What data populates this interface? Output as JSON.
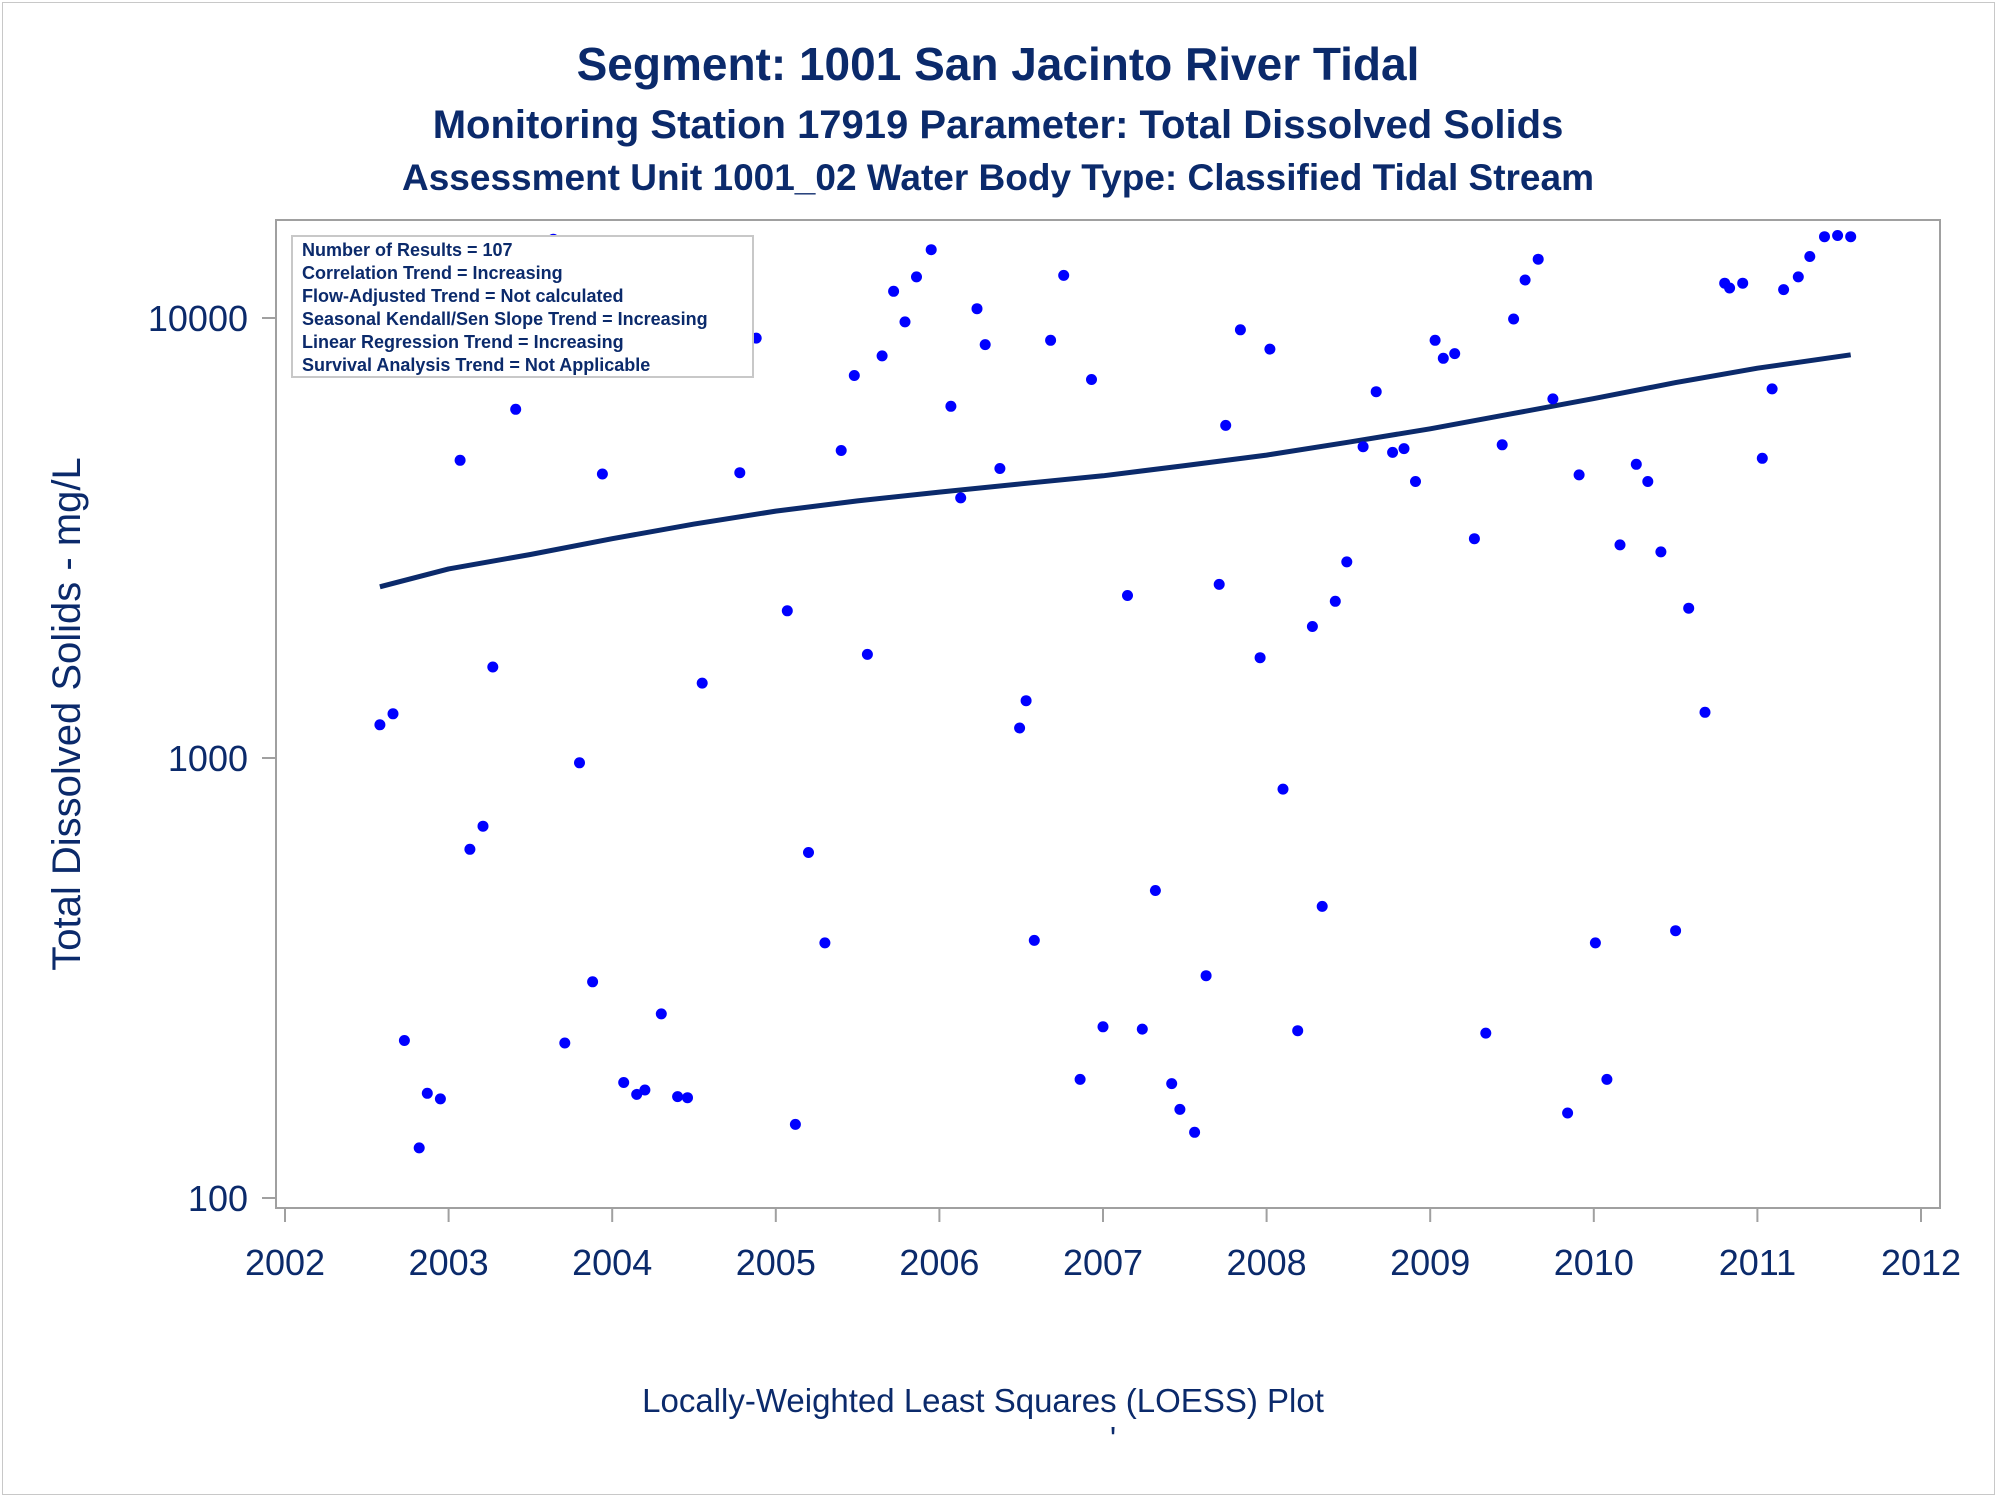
{
  "titles": {
    "line1": "Segment: 1001  San Jacinto River Tidal",
    "line2": "Monitoring Station 17919 Parameter: Total Dissolved Solids",
    "line3": "Assessment Unit 1001_02   Water Body Type: Classified Tidal Stream"
  },
  "stats_box": [
    "Number of Results = 107",
    "Correlation Trend = Increasing",
    "Flow-Adjusted Trend = Not calculated",
    "Seasonal Kendall/Sen Slope Trend = Increasing",
    "Linear Regression Trend = Increasing",
    "Survival Analysis Trend = Not Applicable"
  ],
  "footnote": "Locally-Weighted Least Squares (LOESS) Plot",
  "footnote_mark": "'",
  "colors": {
    "text": "#0b2a6b",
    "points": "#0000ff",
    "line": "#0b2a6b",
    "frame": "#a0a0a0"
  },
  "chart_data": {
    "type": "scatter",
    "title": "Segment: 1001  San Jacinto River Tidal",
    "xlabel": "",
    "ylabel": "Total Dissolved Solids - mg/L",
    "xlim": [
      2002,
      2012
    ],
    "ylim": [
      100,
      16000
    ],
    "yscale": "log",
    "x_ticks": [
      "2002",
      "2003",
      "2004",
      "2005",
      "2006",
      "2007",
      "2008",
      "2009",
      "2010",
      "2011",
      "2012"
    ],
    "y_ticks": [
      "100",
      "1000",
      "10000"
    ],
    "grid": false,
    "legend": "none",
    "series": [
      {
        "type": "scatter",
        "points": [
          [
            2002.58,
            1190
          ],
          [
            2002.66,
            1260
          ],
          [
            2002.73,
            228
          ],
          [
            2002.82,
            130
          ],
          [
            2002.87,
            173
          ],
          [
            2002.95,
            168
          ],
          [
            2003.07,
            4750
          ],
          [
            2003.13,
            620
          ],
          [
            2003.21,
            700
          ],
          [
            2003.27,
            1610
          ],
          [
            2003.41,
            6200
          ],
          [
            2003.45,
            7600
          ],
          [
            2003.64,
            15100
          ],
          [
            2003.71,
            225
          ],
          [
            2003.8,
            975
          ],
          [
            2003.88,
            310
          ],
          [
            2003.94,
            4420
          ],
          [
            2004.07,
            183
          ],
          [
            2004.15,
            172
          ],
          [
            2004.2,
            176
          ],
          [
            2004.3,
            262
          ],
          [
            2004.4,
            170
          ],
          [
            2004.46,
            169
          ],
          [
            2004.55,
            1480
          ],
          [
            2004.62,
            8100
          ],
          [
            2004.78,
            4450
          ],
          [
            2004.88,
            9000
          ],
          [
            2005.07,
            2160
          ],
          [
            2005.12,
            147
          ],
          [
            2005.2,
            610
          ],
          [
            2005.3,
            380
          ],
          [
            2005.4,
            5000
          ],
          [
            2005.48,
            7400
          ],
          [
            2005.56,
            1720
          ],
          [
            2005.65,
            8200
          ],
          [
            2005.72,
            11500
          ],
          [
            2005.79,
            9800
          ],
          [
            2005.86,
            12400
          ],
          [
            2005.95,
            14300
          ],
          [
            2006.07,
            6300
          ],
          [
            2006.13,
            3900
          ],
          [
            2006.23,
            10500
          ],
          [
            2006.28,
            8700
          ],
          [
            2006.37,
            4550
          ],
          [
            2006.49,
            1170
          ],
          [
            2006.53,
            1350
          ],
          [
            2006.58,
            385
          ],
          [
            2006.68,
            8900
          ],
          [
            2006.76,
            12500
          ],
          [
            2006.86,
            186
          ],
          [
            2006.93,
            7250
          ],
          [
            2007.0,
            245
          ],
          [
            2007.15,
            2340
          ],
          [
            2007.24,
            242
          ],
          [
            2007.32,
            500
          ],
          [
            2007.42,
            182
          ],
          [
            2007.47,
            159
          ],
          [
            2007.56,
            141
          ],
          [
            2007.63,
            320
          ],
          [
            2007.71,
            2480
          ],
          [
            2007.75,
            5700
          ],
          [
            2007.84,
            9400
          ],
          [
            2007.96,
            1690
          ],
          [
            2008.02,
            8500
          ],
          [
            2008.1,
            850
          ],
          [
            2008.19,
            240
          ],
          [
            2008.28,
            1990
          ],
          [
            2008.34,
            460
          ],
          [
            2008.42,
            2270
          ],
          [
            2008.49,
            2790
          ],
          [
            2008.59,
            5100
          ],
          [
            2008.67,
            6800
          ],
          [
            2008.77,
            4950
          ],
          [
            2008.84,
            5050
          ],
          [
            2008.91,
            4250
          ],
          [
            2009.03,
            8900
          ],
          [
            2009.08,
            8100
          ],
          [
            2009.15,
            8300
          ],
          [
            2009.27,
            3150
          ],
          [
            2009.34,
            237
          ],
          [
            2009.44,
            5150
          ],
          [
            2009.51,
            9950
          ],
          [
            2009.58,
            12200
          ],
          [
            2009.66,
            13600
          ],
          [
            2009.75,
            6550
          ],
          [
            2009.84,
            156
          ],
          [
            2009.91,
            4400
          ],
          [
            2010.01,
            380
          ],
          [
            2010.08,
            186
          ],
          [
            2010.16,
            3050
          ],
          [
            2010.26,
            4650
          ],
          [
            2010.33,
            4250
          ],
          [
            2010.41,
            2940
          ],
          [
            2010.5,
            405
          ],
          [
            2010.58,
            2190
          ],
          [
            2010.68,
            1270
          ],
          [
            2010.8,
            12000
          ],
          [
            2010.83,
            11700
          ],
          [
            2010.91,
            12000
          ],
          [
            2011.03,
            4800
          ],
          [
            2011.09,
            6900
          ],
          [
            2011.16,
            11600
          ],
          [
            2011.25,
            12400
          ],
          [
            2011.32,
            13800
          ],
          [
            2011.41,
            15300
          ],
          [
            2011.49,
            15400
          ],
          [
            2011.57,
            15300
          ]
        ]
      },
      {
        "type": "line",
        "points": [
          [
            2002.58,
            2450
          ],
          [
            2003.0,
            2690
          ],
          [
            2003.5,
            2900
          ],
          [
            2004.0,
            3150
          ],
          [
            2004.5,
            3400
          ],
          [
            2005.0,
            3640
          ],
          [
            2005.5,
            3840
          ],
          [
            2006.0,
            4020
          ],
          [
            2006.5,
            4200
          ],
          [
            2007.0,
            4380
          ],
          [
            2007.5,
            4620
          ],
          [
            2008.0,
            4880
          ],
          [
            2008.5,
            5220
          ],
          [
            2009.0,
            5600
          ],
          [
            2009.5,
            6060
          ],
          [
            2010.0,
            6560
          ],
          [
            2010.5,
            7130
          ],
          [
            2011.0,
            7690
          ],
          [
            2011.57,
            8250
          ]
        ]
      }
    ]
  }
}
